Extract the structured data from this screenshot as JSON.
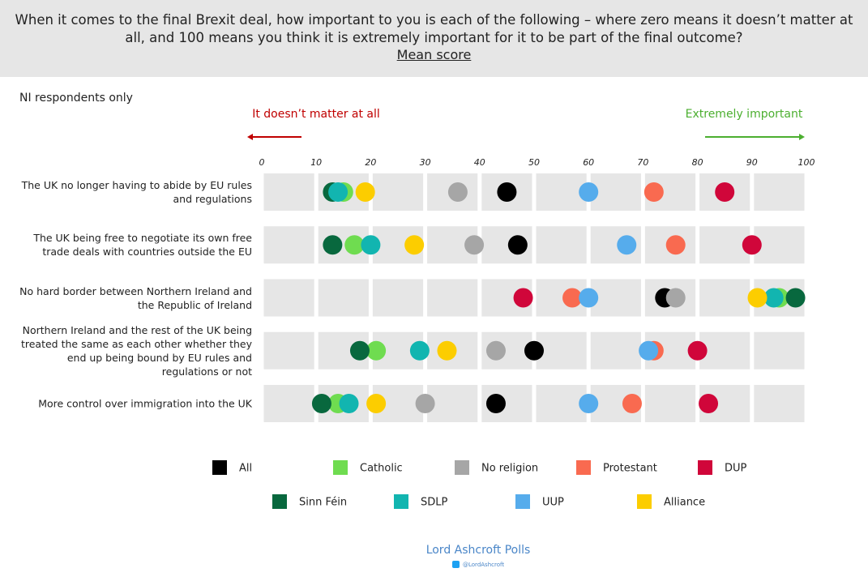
{
  "chart_data": {
    "type": "dot",
    "title": "When it comes to the final Brexit deal, how important to you is each of the following – where zero means it doesn’t matter at all, and 100 means you think it is extremely important for it to be part of the final outcome?",
    "subtitle": "Mean score",
    "note": "NI respondents only",
    "annotations": [
      "It doesn’t matter at all",
      "Extremely important"
    ],
    "source": "Lord Ashcroft Polls",
    "source_handle": "@LordAshcroft",
    "categories": [
      "The UK no longer having to abide by EU rules and regulations",
      "The UK being free to negotiate its own free trade deals with countries outside the EU",
      "No hard border between Northern Ireland and the Republic of Ireland",
      "Northern Ireland and the rest of the UK being treated the same as each other whether they end up being bound by EU rules and regulations or not",
      "More control over immigration into the UK"
    ],
    "xlim": [
      0,
      100
    ],
    "xticks": [
      0,
      10,
      20,
      30,
      40,
      50,
      60,
      70,
      80,
      90,
      100
    ],
    "series": [
      {
        "name": "All",
        "color": "#000000",
        "values": [
          45,
          47,
          74,
          50,
          43
        ]
      },
      {
        "name": "Catholic",
        "color": "#6fdc50",
        "values": [
          15,
          17,
          95,
          21,
          14
        ]
      },
      {
        "name": "No religion",
        "color": "#a6a6a6",
        "values": [
          36,
          39,
          76,
          43,
          30
        ]
      },
      {
        "name": "Protestant",
        "color": "#f96a50",
        "values": [
          72,
          76,
          57,
          72,
          68
        ]
      },
      {
        "name": "DUP",
        "color": "#d0063a",
        "values": [
          85,
          90,
          48,
          80,
          82
        ]
      },
      {
        "name": "Sinn Féin",
        "color": "#08683e",
        "values": [
          13,
          13,
          98,
          18,
          11
        ]
      },
      {
        "name": "SDLP",
        "color": "#12b5b0",
        "values": [
          14,
          20,
          94,
          29,
          16
        ]
      },
      {
        "name": "UUP",
        "color": "#56acec",
        "values": [
          60,
          67,
          60,
          71,
          60
        ]
      },
      {
        "name": "Alliance",
        "color": "#fccd00",
        "values": [
          19,
          28,
          91,
          34,
          21
        ]
      }
    ]
  }
}
